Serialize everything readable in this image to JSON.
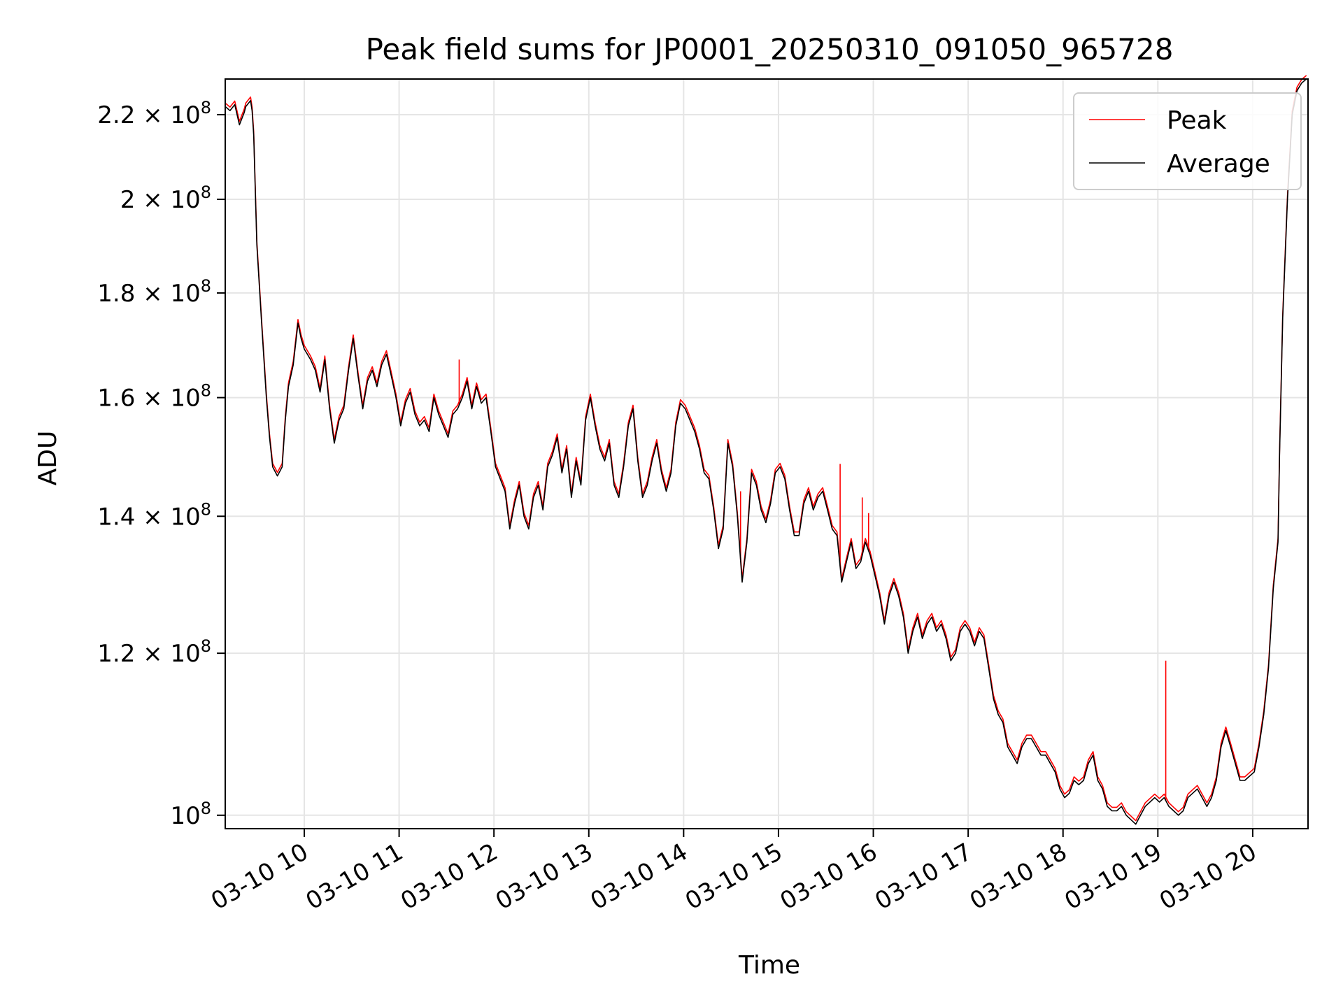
{
  "chart_data": {
    "type": "line",
    "title": "Peak field sums for JP0001_20250310_091050_965728",
    "xlabel": "Time",
    "ylabel": "ADU",
    "yscale": "log",
    "grid": true,
    "legend": "top-right",
    "xlim": [
      "2025-03-10 09:10",
      "2025-03-10 20:35"
    ],
    "ylim": [
      98500000,
      229000000
    ],
    "x_ticks": [
      {
        "value": "2025-03-10 10:00",
        "label": "03-10 10"
      },
      {
        "value": "2025-03-10 11:00",
        "label": "03-10 11"
      },
      {
        "value": "2025-03-10 12:00",
        "label": "03-10 12"
      },
      {
        "value": "2025-03-10 13:00",
        "label": "03-10 13"
      },
      {
        "value": "2025-03-10 14:00",
        "label": "03-10 14"
      },
      {
        "value": "2025-03-10 15:00",
        "label": "03-10 15"
      },
      {
        "value": "2025-03-10 16:00",
        "label": "03-10 16"
      },
      {
        "value": "2025-03-10 17:00",
        "label": "03-10 17"
      },
      {
        "value": "2025-03-10 18:00",
        "label": "03-10 18"
      },
      {
        "value": "2025-03-10 19:00",
        "label": "03-10 19"
      },
      {
        "value": "2025-03-10 20:00",
        "label": "03-10 20"
      }
    ],
    "y_ticks": [
      {
        "value": 100000000,
        "mantissa": "",
        "exp": "8"
      },
      {
        "value": 120000000,
        "mantissa": "1.2",
        "exp": "8"
      },
      {
        "value": 140000000,
        "mantissa": "1.4",
        "exp": "8"
      },
      {
        "value": 160000000,
        "mantissa": "1.6",
        "exp": "8"
      },
      {
        "value": 180000000,
        "mantissa": "1.8",
        "exp": "8"
      },
      {
        "value": 200000000,
        "mantissa": "2",
        "exp": "8"
      },
      {
        "value": 220000000,
        "mantissa": "2.2",
        "exp": "8"
      }
    ],
    "series": [
      {
        "name": "Peak",
        "color": "#ff0000",
        "spikes": [
          {
            "x": "2025-03-10 11:38",
            "y": 167000000
          },
          {
            "x": "2025-03-10 14:36",
            "y": 144000000
          },
          {
            "x": "2025-03-10 15:39",
            "y": 148500000
          },
          {
            "x": "2025-03-10 15:53",
            "y": 143000000
          },
          {
            "x": "2025-03-10 15:57",
            "y": 140500000
          },
          {
            "x": "2025-03-10 19:05",
            "y": 119000000
          }
        ]
      },
      {
        "name": "Average",
        "color": "#000000",
        "x": [
          "2025-03-10 09:10",
          "2025-03-10 09:13",
          "2025-03-10 09:16",
          "2025-03-10 09:19",
          "2025-03-10 09:22",
          "2025-03-10 09:23",
          "2025-03-10 09:26",
          "2025-03-10 09:27",
          "2025-03-10 09:28",
          "2025-03-10 09:30",
          "2025-03-10 09:33",
          "2025-03-10 09:36",
          "2025-03-10 09:38",
          "2025-03-10 09:40",
          "2025-03-10 09:43",
          "2025-03-10 09:46",
          "2025-03-10 09:48",
          "2025-03-10 09:50",
          "2025-03-10 09:53",
          "2025-03-10 09:56",
          "2025-03-10 09:58",
          "2025-03-10 10:00",
          "2025-03-10 10:04",
          "2025-03-10 10:07",
          "2025-03-10 10:10",
          "2025-03-10 10:13",
          "2025-03-10 10:16",
          "2025-03-10 10:19",
          "2025-03-10 10:22",
          "2025-03-10 10:25",
          "2025-03-10 10:28",
          "2025-03-10 10:31",
          "2025-03-10 10:34",
          "2025-03-10 10:37",
          "2025-03-10 10:40",
          "2025-03-10 10:43",
          "2025-03-10 10:46",
          "2025-03-10 10:49",
          "2025-03-10 10:52",
          "2025-03-10 10:55",
          "2025-03-10 10:58",
          "2025-03-10 11:01",
          "2025-03-10 11:04",
          "2025-03-10 11:07",
          "2025-03-10 11:10",
          "2025-03-10 11:13",
          "2025-03-10 11:16",
          "2025-03-10 11:19",
          "2025-03-10 11:22",
          "2025-03-10 11:25",
          "2025-03-10 11:28",
          "2025-03-10 11:31",
          "2025-03-10 11:34",
          "2025-03-10 11:37",
          "2025-03-10 11:40",
          "2025-03-10 11:43",
          "2025-03-10 11:46",
          "2025-03-10 11:49",
          "2025-03-10 11:52",
          "2025-03-10 11:55",
          "2025-03-10 11:58",
          "2025-03-10 12:01",
          "2025-03-10 12:04",
          "2025-03-10 12:07",
          "2025-03-10 12:10",
          "2025-03-10 12:13",
          "2025-03-10 12:16",
          "2025-03-10 12:19",
          "2025-03-10 12:22",
          "2025-03-10 12:25",
          "2025-03-10 12:28",
          "2025-03-10 12:31",
          "2025-03-10 12:34",
          "2025-03-10 12:37",
          "2025-03-10 12:40",
          "2025-03-10 12:43",
          "2025-03-10 12:46",
          "2025-03-10 12:49",
          "2025-03-10 12:52",
          "2025-03-10 12:55",
          "2025-03-10 12:58",
          "2025-03-10 13:01",
          "2025-03-10 13:04",
          "2025-03-10 13:07",
          "2025-03-10 13:10",
          "2025-03-10 13:13",
          "2025-03-10 13:16",
          "2025-03-10 13:19",
          "2025-03-10 13:22",
          "2025-03-10 13:25",
          "2025-03-10 13:28",
          "2025-03-10 13:31",
          "2025-03-10 13:34",
          "2025-03-10 13:37",
          "2025-03-10 13:40",
          "2025-03-10 13:43",
          "2025-03-10 13:46",
          "2025-03-10 13:49",
          "2025-03-10 13:52",
          "2025-03-10 13:55",
          "2025-03-10 13:58",
          "2025-03-10 14:01",
          "2025-03-10 14:04",
          "2025-03-10 14:07",
          "2025-03-10 14:10",
          "2025-03-10 14:13",
          "2025-03-10 14:16",
          "2025-03-10 14:19",
          "2025-03-10 14:22",
          "2025-03-10 14:25",
          "2025-03-10 14:28",
          "2025-03-10 14:31",
          "2025-03-10 14:34",
          "2025-03-10 14:37",
          "2025-03-10 14:40",
          "2025-03-10 14:43",
          "2025-03-10 14:46",
          "2025-03-10 14:49",
          "2025-03-10 14:52",
          "2025-03-10 14:55",
          "2025-03-10 14:58",
          "2025-03-10 15:01",
          "2025-03-10 15:04",
          "2025-03-10 15:07",
          "2025-03-10 15:10",
          "2025-03-10 15:13",
          "2025-03-10 15:16",
          "2025-03-10 15:19",
          "2025-03-10 15:22",
          "2025-03-10 15:25",
          "2025-03-10 15:28",
          "2025-03-10 15:31",
          "2025-03-10 15:34",
          "2025-03-10 15:37",
          "2025-03-10 15:40",
          "2025-03-10 15:43",
          "2025-03-10 15:46",
          "2025-03-10 15:49",
          "2025-03-10 15:52",
          "2025-03-10 15:55",
          "2025-03-10 15:58",
          "2025-03-10 16:01",
          "2025-03-10 16:04",
          "2025-03-10 16:07",
          "2025-03-10 16:10",
          "2025-03-10 16:13",
          "2025-03-10 16:16",
          "2025-03-10 16:19",
          "2025-03-10 16:22",
          "2025-03-10 16:25",
          "2025-03-10 16:28",
          "2025-03-10 16:31",
          "2025-03-10 16:34",
          "2025-03-10 16:37",
          "2025-03-10 16:40",
          "2025-03-10 16:43",
          "2025-03-10 16:46",
          "2025-03-10 16:49",
          "2025-03-10 16:52",
          "2025-03-10 16:55",
          "2025-03-10 16:58",
          "2025-03-10 17:01",
          "2025-03-10 17:04",
          "2025-03-10 17:07",
          "2025-03-10 17:10",
          "2025-03-10 17:13",
          "2025-03-10 17:16",
          "2025-03-10 17:19",
          "2025-03-10 17:22",
          "2025-03-10 17:25",
          "2025-03-10 17:28",
          "2025-03-10 17:31",
          "2025-03-10 17:34",
          "2025-03-10 17:37",
          "2025-03-10 17:40",
          "2025-03-10 17:43",
          "2025-03-10 17:46",
          "2025-03-10 17:49",
          "2025-03-10 17:52",
          "2025-03-10 17:55",
          "2025-03-10 17:58",
          "2025-03-10 18:01",
          "2025-03-10 18:04",
          "2025-03-10 18:07",
          "2025-03-10 18:10",
          "2025-03-10 18:13",
          "2025-03-10 18:16",
          "2025-03-10 18:19",
          "2025-03-10 18:22",
          "2025-03-10 18:25",
          "2025-03-10 18:28",
          "2025-03-10 18:31",
          "2025-03-10 18:34",
          "2025-03-10 18:37",
          "2025-03-10 18:40",
          "2025-03-10 18:43",
          "2025-03-10 18:46",
          "2025-03-10 18:49",
          "2025-03-10 18:52",
          "2025-03-10 18:55",
          "2025-03-10 18:58",
          "2025-03-10 19:01",
          "2025-03-10 19:04",
          "2025-03-10 19:07",
          "2025-03-10 19:10",
          "2025-03-10 19:13",
          "2025-03-10 19:16",
          "2025-03-10 19:19",
          "2025-03-10 19:22",
          "2025-03-10 19:25",
          "2025-03-10 19:28",
          "2025-03-10 19:31",
          "2025-03-10 19:34",
          "2025-03-10 19:37",
          "2025-03-10 19:40",
          "2025-03-10 19:43",
          "2025-03-10 19:46",
          "2025-03-10 19:49",
          "2025-03-10 19:52",
          "2025-03-10 19:55",
          "2025-03-10 19:58",
          "2025-03-10 20:01",
          "2025-03-10 20:04",
          "2025-03-10 20:07",
          "2025-03-10 20:10",
          "2025-03-10 20:13",
          "2025-03-10 20:16",
          "2025-03-10 20:17",
          "2025-03-10 20:19",
          "2025-03-10 20:22",
          "2025-03-10 20:25",
          "2025-03-10 20:28",
          "2025-03-10 20:31",
          "2025-03-10 20:34"
        ],
        "y": [
          222000000,
          221000000,
          222500000,
          217500000,
          220500000,
          222000000,
          223500000,
          221000000,
          215000000,
          190000000,
          174000000,
          160000000,
          153000000,
          148000000,
          146500000,
          148000000,
          156000000,
          162000000,
          166000000,
          174000000,
          171000000,
          169000000,
          167000000,
          165000000,
          161000000,
          167000000,
          158000000,
          152000000,
          156000000,
          158000000,
          165000000,
          171000000,
          164000000,
          158000000,
          163000000,
          165000000,
          162000000,
          166000000,
          168000000,
          164000000,
          160000000,
          155000000,
          159000000,
          161000000,
          157000000,
          155000000,
          156000000,
          154000000,
          160000000,
          157000000,
          155000000,
          153000000,
          157000000,
          158000000,
          160000000,
          163000000,
          158000000,
          162000000,
          159000000,
          160000000,
          154000000,
          148000000,
          146000000,
          144000000,
          138000000,
          142000000,
          145000000,
          140000000,
          138000000,
          143000000,
          145000000,
          141000000,
          148000000,
          150000000,
          153000000,
          147000000,
          151000000,
          143000000,
          149000000,
          145000000,
          156000000,
          160000000,
          155000000,
          151000000,
          149000000,
          152000000,
          145000000,
          143000000,
          148000000,
          155000000,
          158000000,
          149000000,
          143000000,
          145000000,
          149000000,
          152000000,
          147000000,
          144000000,
          147000000,
          155000000,
          159000000,
          158000000,
          156000000,
          154000000,
          151000000,
          147000000,
          146000000,
          141000000,
          135000000,
          138000000,
          152000000,
          148000000,
          140000000,
          130000000,
          136000000,
          147000000,
          145000000,
          141000000,
          139000000,
          142000000,
          147000000,
          148000000,
          146000000,
          141000000,
          137000000,
          137000000,
          142000000,
          144000000,
          141000000,
          143000000,
          144000000,
          141000000,
          138000000,
          137000000,
          130000000,
          133000000,
          136000000,
          132000000,
          133000000,
          136000000,
          134000000,
          131000000,
          128000000,
          124000000,
          128000000,
          130000000,
          128000000,
          125000000,
          120000000,
          123000000,
          125000000,
          122000000,
          124000000,
          125000000,
          123000000,
          124000000,
          122000000,
          119000000,
          120000000,
          123000000,
          124000000,
          123000000,
          121000000,
          123000000,
          122000000,
          118000000,
          114000000,
          112000000,
          111000000,
          108000000,
          107000000,
          106000000,
          108000000,
          109000000,
          109000000,
          108000000,
          107000000,
          107000000,
          106000000,
          105000000,
          103000000,
          102000000,
          102500000,
          104000000,
          103500000,
          104000000,
          106000000,
          107000000,
          104000000,
          103000000,
          101000000,
          100500000,
          100500000,
          101000000,
          100000000,
          99500000,
          99000000,
          100000000,
          101000000,
          101500000,
          102000000,
          101500000,
          102000000,
          101000000,
          100500000,
          100000000,
          100500000,
          102000000,
          102500000,
          103000000,
          102000000,
          101000000,
          102000000,
          104000000,
          108000000,
          110000000,
          108000000,
          106000000,
          104000000,
          104000000,
          104500000,
          105000000,
          108000000,
          112000000,
          118000000,
          129000000,
          136000000,
          150000000,
          175000000,
          200000000,
          220000000,
          226000000,
          228000000,
          229000000
        ]
      }
    ]
  }
}
